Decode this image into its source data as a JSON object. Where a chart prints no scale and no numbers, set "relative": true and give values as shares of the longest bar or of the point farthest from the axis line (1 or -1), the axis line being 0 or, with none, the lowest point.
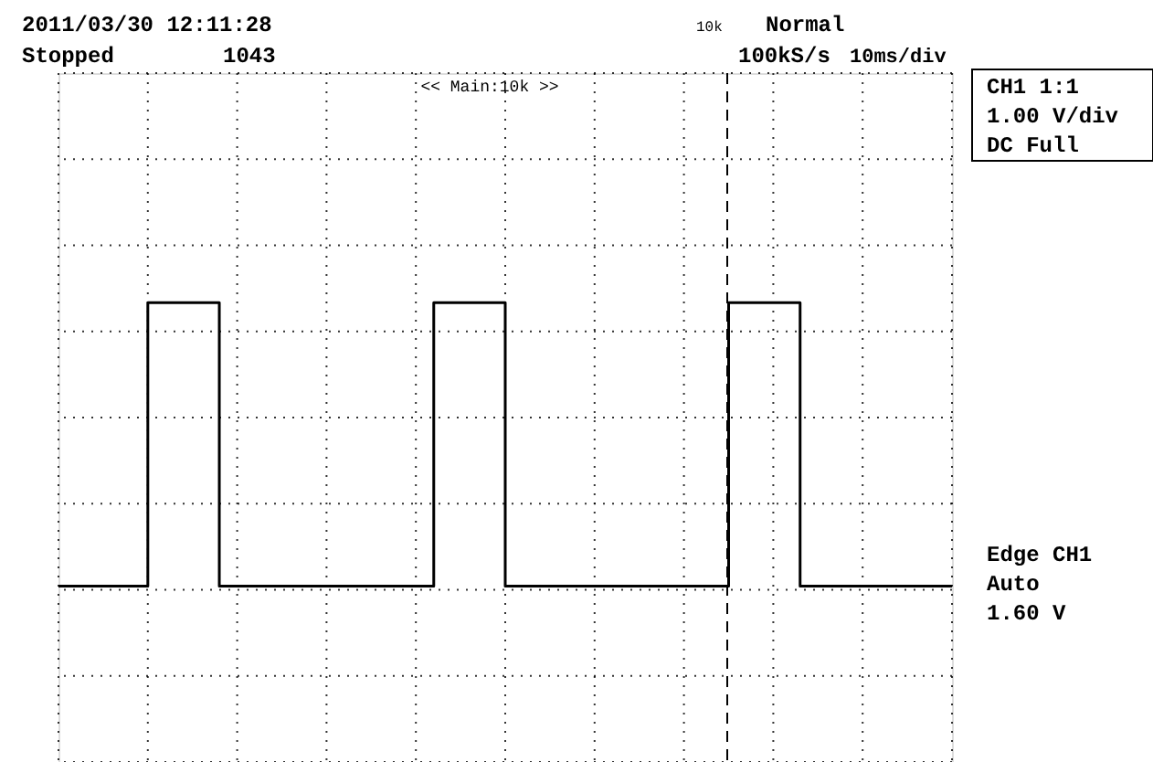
{
  "chart_data": {
    "type": "step",
    "relative": true,
    "categories": [
      null,
      null,
      null,
      null,
      null,
      null,
      null,
      null,
      null,
      null,
      null,
      null,
      null,
      null,
      null,
      null,
      null,
      null,
      null,
      null,
      null,
      null,
      null,
      null,
      null,
      null,
      null,
      null,
      null,
      null,
      null,
      null,
      null,
      null,
      null,
      null,
      null,
      null,
      null,
      null,
      null,
      null,
      null,
      null,
      null,
      null,
      null,
      null,
      null,
      null,
      null,
      null,
      null,
      null,
      null,
      null,
      null,
      null,
      null,
      null,
      null,
      null,
      null,
      null,
      null,
      null,
      null,
      null,
      null,
      null,
      null,
      null,
      null,
      null,
      null,
      null,
      null,
      null,
      null,
      null,
      null,
      null,
      null,
      null,
      null,
      null,
      null,
      null,
      null,
      null,
      null,
      null,
      null,
      null,
      null,
      null,
      null,
      null,
      null,
      null,
      null
    ],
    "series": [
      {
        "color": "#000000",
        "values": [
          0,
          0,
          0,
          0,
          0,
          0,
          0,
          0,
          0,
          0,
          1,
          1,
          1,
          1,
          1,
          1,
          1,
          1,
          0,
          0,
          0,
          0,
          0,
          0,
          0,
          0,
          0,
          0,
          0,
          0,
          0,
          0,
          0,
          0,
          0,
          0,
          0,
          0,
          0,
          0,
          0,
          0,
          1,
          1,
          1,
          1,
          1,
          1,
          1,
          1,
          0,
          0,
          0,
          0,
          0,
          0,
          0,
          0,
          0,
          0,
          0,
          0,
          0,
          0,
          0,
          0,
          0,
          0,
          0,
          0,
          0,
          0,
          0,
          0,
          0,
          1,
          1,
          1,
          1,
          1,
          1,
          1,
          1,
          0,
          0,
          0,
          0,
          0,
          0,
          0,
          0,
          0,
          0,
          0,
          0,
          0,
          0,
          0,
          0,
          0,
          0
        ]
      }
    ],
    "grid": true,
    "line_style": "solid",
    "marker": "none",
    "annotations": [
      "2011/03/30 12:11:28",
      "Stopped",
      "1043",
      "10k",
      "Normal",
      "100kS/s",
      "10ms/div",
      "<< Main:10k >>",
      "CH1 1:1",
      "1.00 V/div",
      "DC Full",
      "Edge CH1",
      "Auto",
      "1.60 V"
    ]
  }
}
